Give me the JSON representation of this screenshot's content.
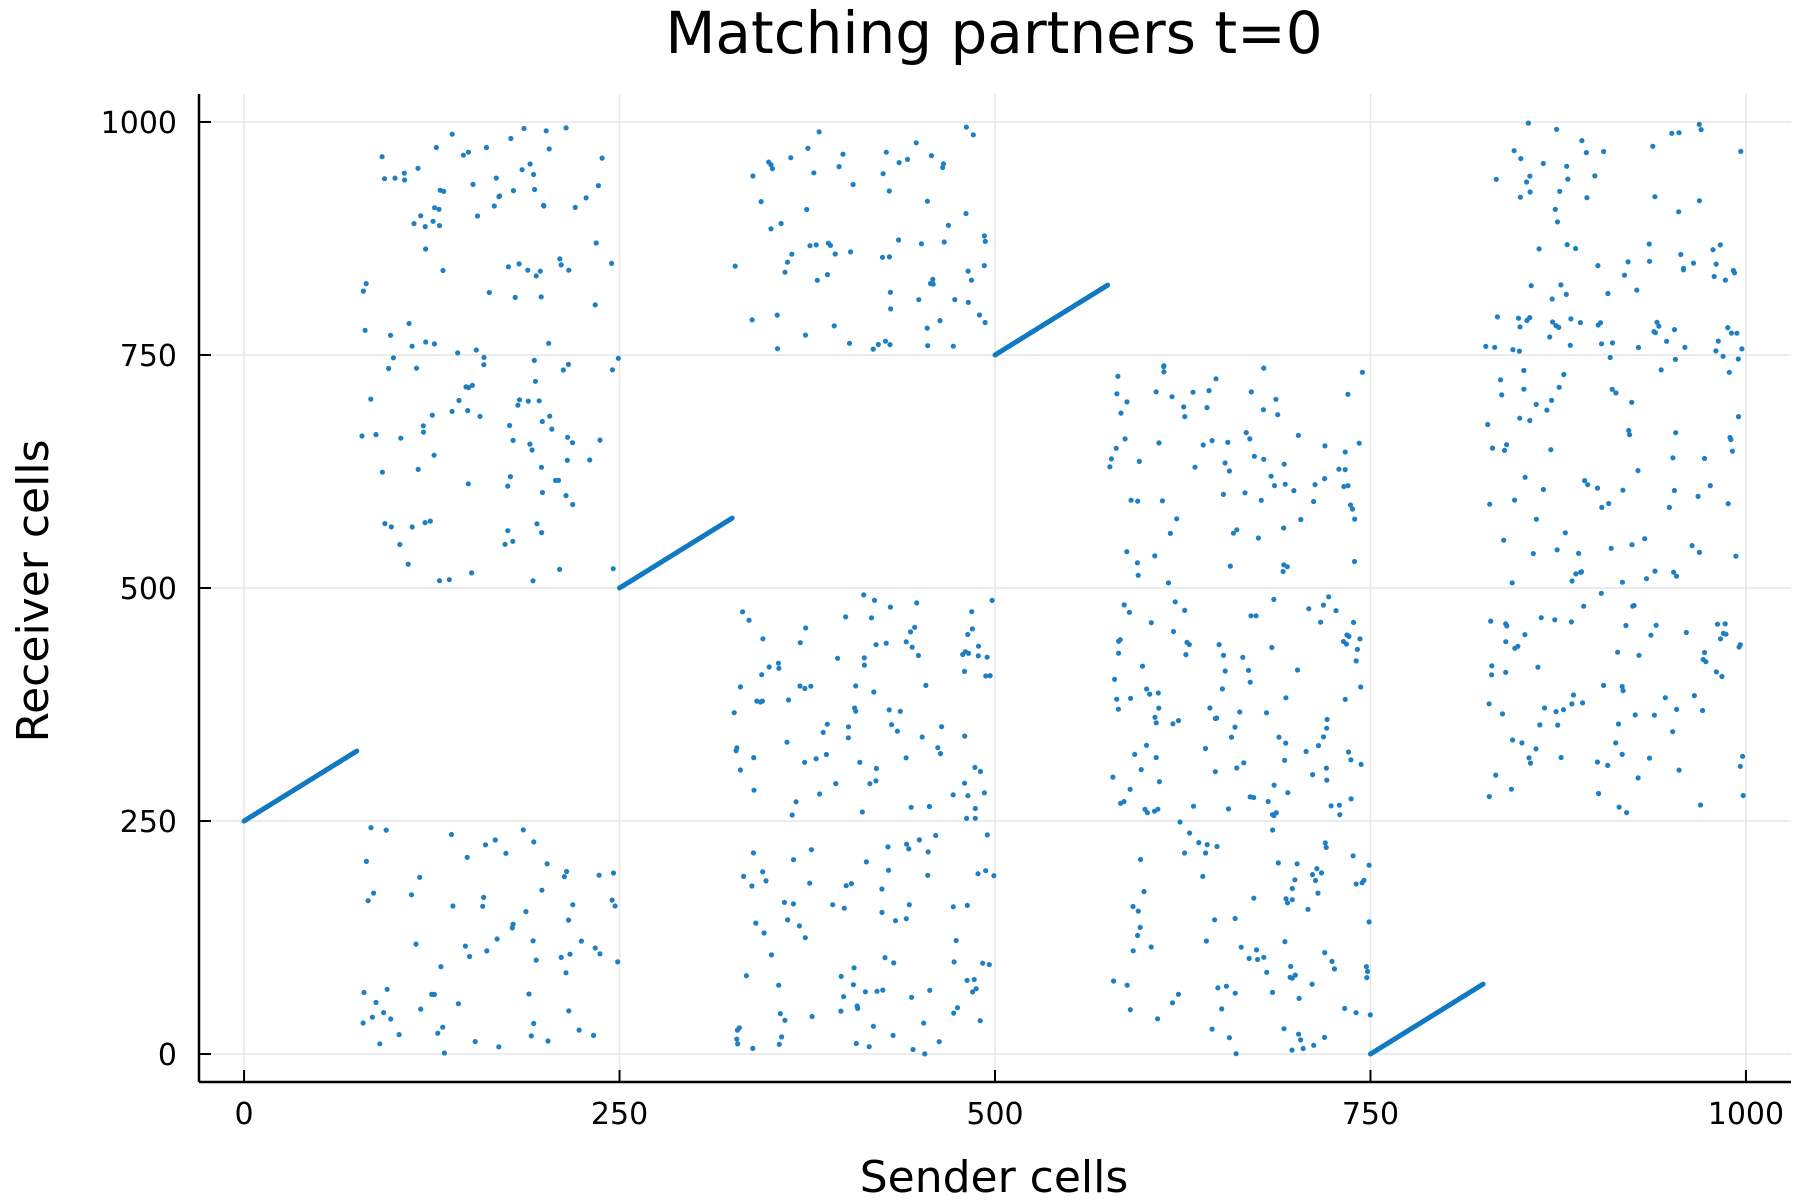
{
  "chart_data": {
    "type": "scatter",
    "title": "Matching partners t=0",
    "xlabel": "Sender cells",
    "ylabel": "Receiver cells",
    "xlim": [
      -30,
      1030
    ],
    "ylim": [
      -30,
      1030
    ],
    "xticks": [
      0,
      250,
      500,
      750,
      1000
    ],
    "yticks": [
      0,
      250,
      500,
      750,
      1000
    ],
    "xtick_labels": [
      "0",
      "250",
      "500",
      "750",
      "1000"
    ],
    "ytick_labels": [
      "0",
      "250",
      "500",
      "750",
      "1000"
    ],
    "grid": true,
    "legend": "none",
    "color": "#1f7fc4",
    "diagonal_segments": [
      {
        "x": [
          0,
          75
        ],
        "y": [
          250,
          325
        ]
      },
      {
        "x": [
          250,
          325
        ],
        "y": [
          500,
          575
        ]
      },
      {
        "x": [
          500,
          575
        ],
        "y": [
          750,
          825
        ]
      },
      {
        "x": [
          750,
          825
        ],
        "y": [
          0,
          75
        ]
      }
    ],
    "point_blocks": [
      {
        "x": [
          77,
          250
        ],
        "y": [
          505,
          995
        ],
        "n": 140
      },
      {
        "x": [
          77,
          250
        ],
        "y": [
          0,
          245
        ],
        "n": 70
      },
      {
        "x": [
          326,
          500
        ],
        "y": [
          755,
          995
        ],
        "n": 75
      },
      {
        "x": [
          326,
          500
        ],
        "y": [
          250,
          495
        ],
        "n": 95
      },
      {
        "x": [
          326,
          500
        ],
        "y": [
          0,
          245
        ],
        "n": 85
      },
      {
        "x": [
          576,
          750
        ],
        "y": [
          505,
          745
        ],
        "n": 80
      },
      {
        "x": [
          576,
          750
        ],
        "y": [
          255,
          495
        ],
        "n": 105
      },
      {
        "x": [
          576,
          750
        ],
        "y": [
          0,
          250
        ],
        "n": 85
      },
      {
        "x": [
          826,
          1000
        ],
        "y": [
          755,
          1000
        ],
        "n": 75
      },
      {
        "x": [
          826,
          1000
        ],
        "y": [
          505,
          795
        ],
        "n": 85
      },
      {
        "x": [
          826,
          1000
        ],
        "y": [
          255,
          495
        ],
        "n": 80
      }
    ]
  }
}
